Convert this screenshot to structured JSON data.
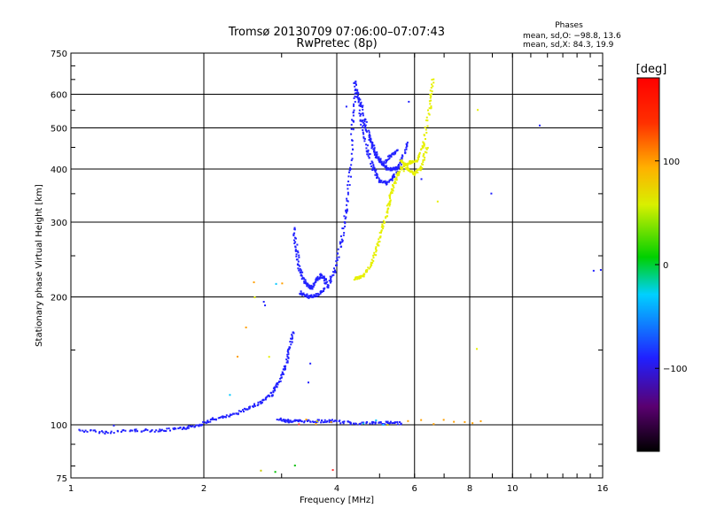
{
  "chart_data": {
    "type": "scatter",
    "title": "Tromsø 20130709 07:06:00–07:07:43",
    "subtitle": "RwPretec (8p)",
    "xlabel": "Frequency [MHz]",
    "ylabel": "Stationary phase Virtual Height [km]",
    "x_scale": "log",
    "y_scale": "log",
    "xlim": [
      1,
      16
    ],
    "ylim": [
      75,
      750
    ],
    "x_ticks": [
      1,
      2,
      4,
      6,
      8,
      10,
      16
    ],
    "x_tick_labels": [
      "1",
      "2",
      "4",
      "6",
      "8",
      "10",
      "16"
    ],
    "y_ticks": [
      75,
      100,
      200,
      300,
      400,
      500,
      600,
      750
    ],
    "y_tick_labels": [
      "75",
      "100",
      "200",
      "300",
      "400",
      "500",
      "600",
      "750"
    ],
    "grid": true,
    "phases_box": {
      "title": "Phases",
      "line1": "mean, sd,O: −98.8, 13.6",
      "line2": "mean, sd,X:  84.3, 19.9"
    },
    "colorbar": {
      "title": "[deg]",
      "range": [
        -180,
        180
      ],
      "ticks": [
        100,
        0,
        -100
      ],
      "tick_labels": [
        "100",
        "0",
        "−100"
      ]
    },
    "series": [
      {
        "color_phase": -100,
        "color": "#2222ff",
        "trace_segments": [
          [
            [
              1.05,
              97
            ],
            [
              1.2,
              96
            ],
            [
              1.4,
              97
            ],
            [
              1.6,
              97
            ],
            [
              1.8,
              98
            ],
            [
              1.95,
              100
            ],
            [
              2.1,
              103
            ],
            [
              2.3,
              105
            ],
            [
              2.5,
              109
            ],
            [
              2.7,
              113
            ],
            [
              2.85,
              118
            ],
            [
              2.95,
              125
            ],
            [
              3.05,
              135
            ],
            [
              3.12,
              150
            ],
            [
              3.2,
              165
            ]
          ],
          [
            [
              2.95,
              103
            ],
            [
              3.1,
              102
            ],
            [
              3.3,
              102
            ],
            [
              3.6,
              102
            ],
            [
              3.9,
              102
            ],
            [
              4.3,
              101
            ],
            [
              4.8,
              101
            ],
            [
              5.2,
              101
            ],
            [
              5.6,
              101
            ]
          ],
          [
            [
              3.3,
              205
            ],
            [
              3.45,
              200
            ],
            [
              3.6,
              202
            ],
            [
              3.8,
              210
            ],
            [
              3.95,
              230
            ],
            [
              4.1,
              270
            ],
            [
              4.2,
              320
            ],
            [
              4.3,
              400
            ],
            [
              4.35,
              520
            ],
            [
              4.4,
              640
            ]
          ],
          [
            [
              4.4,
              640
            ],
            [
              4.55,
              520
            ],
            [
              4.7,
              440
            ],
            [
              4.85,
              400
            ],
            [
              5.0,
              375
            ],
            [
              5.2,
              370
            ],
            [
              5.4,
              385
            ],
            [
              5.6,
              420
            ],
            [
              5.8,
              460
            ]
          ],
          [
            [
              4.45,
              610
            ],
            [
              4.55,
              560
            ],
            [
              4.75,
              470
            ],
            [
              4.9,
              430
            ],
            [
              5.1,
              410
            ],
            [
              5.3,
              430
            ],
            [
              5.5,
              445
            ]
          ],
          [
            [
              4.6,
              520
            ],
            [
              4.8,
              460
            ],
            [
              5.0,
              420
            ],
            [
              5.2,
              400
            ],
            [
              5.4,
              400
            ],
            [
              5.6,
              405
            ]
          ],
          [
            [
              3.2,
              290
            ],
            [
              3.25,
              255
            ],
            [
              3.3,
              230
            ],
            [
              3.4,
              215
            ],
            [
              3.5,
              210
            ],
            [
              3.6,
              220
            ],
            [
              3.7,
              225
            ],
            [
              3.8,
              215
            ]
          ]
        ],
        "scatter_points": [
          [
            4.2,
            560
          ],
          [
            5.8,
            580
          ],
          [
            2.72,
            195
          ],
          [
            2.75,
            190
          ],
          [
            3.5,
            140
          ],
          [
            3.45,
            125
          ],
          [
            9.0,
            350
          ],
          [
            11.5,
            510
          ],
          [
            15.3,
            230
          ],
          [
            15.8,
            232
          ],
          [
            1.25,
            100
          ],
          [
            6.2,
            380
          ]
        ]
      },
      {
        "color_phase": 100,
        "color": "#e6f000",
        "trace_segments": [
          [
            [
              4.4,
              220
            ],
            [
              4.6,
              225
            ],
            [
              4.8,
              240
            ],
            [
              4.95,
              265
            ],
            [
              5.1,
              295
            ],
            [
              5.25,
              330
            ],
            [
              5.35,
              360
            ],
            [
              5.5,
              390
            ],
            [
              5.7,
              410
            ],
            [
              5.9,
              415
            ],
            [
              6.1,
              420
            ],
            [
              6.3,
              460
            ],
            [
              6.5,
              560
            ],
            [
              6.6,
              650
            ]
          ],
          [
            [
              5.6,
              420
            ],
            [
              5.8,
              400
            ],
            [
              6.0,
              390
            ],
            [
              6.2,
              400
            ],
            [
              6.4,
              450
            ]
          ]
        ],
        "scatter_points": [
          [
            6.8,
            335
          ],
          [
            8.3,
            550
          ],
          [
            8.3,
            150
          ],
          [
            2.6,
            200
          ],
          [
            2.8,
            145
          ],
          [
            5.7,
            395
          ]
        ]
      },
      {
        "color_phase": 120,
        "color": "#ffa000",
        "trace_segments": [],
        "scatter_points": [
          [
            3.4,
            103
          ],
          [
            3.6,
            100
          ],
          [
            3.9,
            102
          ],
          [
            5.8,
            102
          ],
          [
            6.2,
            102
          ],
          [
            6.6,
            101
          ],
          [
            7.0,
            103
          ],
          [
            7.4,
            102
          ],
          [
            7.8,
            102
          ],
          [
            8.1,
            101
          ],
          [
            8.5,
            102
          ],
          [
            2.6,
            218
          ],
          [
            3.0,
            215
          ],
          [
            2.5,
            170
          ],
          [
            2.4,
            145
          ]
        ]
      },
      {
        "color_phase": -40,
        "color": "#00c8ff",
        "trace_segments": [],
        "scatter_points": [
          [
            2.9,
            215
          ],
          [
            4.6,
            101
          ],
          [
            4.9,
            102
          ],
          [
            5.1,
            100
          ],
          [
            2.3,
            118
          ]
        ]
      },
      {
        "color_phase": 40,
        "color": "#00c000",
        "trace_segments": [],
        "scatter_points": [
          [
            2.9,
            78
          ],
          [
            3.2,
            80
          ]
        ]
      },
      {
        "color_phase": 160,
        "color": "#ff3030",
        "trace_segments": [],
        "scatter_points": [
          [
            3.9,
            78
          ],
          [
            3.3,
            100
          ]
        ]
      },
      {
        "color_phase": 80,
        "color": "#c8c800",
        "trace_segments": [],
        "scatter_points": [
          [
            2.7,
            78
          ],
          [
            3.6,
            102
          ],
          [
            5.2,
            100
          ]
        ]
      }
    ]
  }
}
